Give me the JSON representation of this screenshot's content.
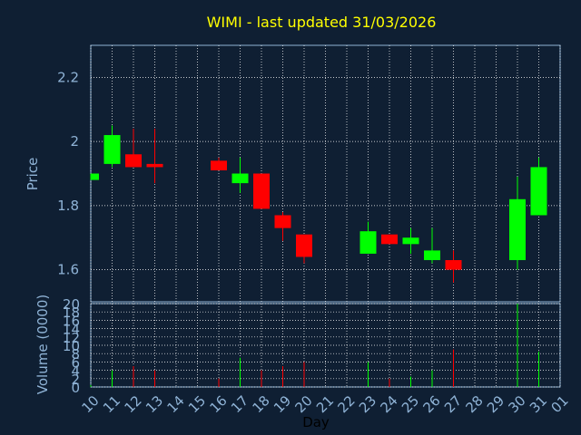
{
  "chart_data": [
    {
      "type": "candlestick",
      "title": "WIMI - last updated 31/03/2026",
      "ylabel": "Price",
      "ylim": [
        1.5,
        2.3
      ],
      "yticks": [
        "1.6",
        "1.8",
        "2",
        "2.2"
      ],
      "grid": true,
      "categories": [
        "10",
        "11",
        "12",
        "13",
        "14",
        "15",
        "16",
        "17",
        "18",
        "19",
        "20",
        "21",
        "22",
        "23",
        "24",
        "25",
        "26",
        "27",
        "28",
        "29",
        "30",
        "31",
        "01"
      ],
      "candles": [
        {
          "day": "10",
          "open": 1.88,
          "high": 1.9,
          "low": 1.88,
          "close": 1.9
        },
        {
          "day": "11",
          "open": 1.93,
          "high": 2.05,
          "low": 1.92,
          "close": 2.02
        },
        {
          "day": "12",
          "open": 1.96,
          "high": 2.04,
          "low": 1.92,
          "close": 1.92
        },
        {
          "day": "13",
          "open": 1.93,
          "high": 2.04,
          "low": 1.87,
          "close": 1.92
        },
        {
          "day": "16",
          "open": 1.94,
          "high": 1.95,
          "low": 1.91,
          "close": 1.91
        },
        {
          "day": "17",
          "open": 1.87,
          "high": 1.95,
          "low": 1.84,
          "close": 1.9
        },
        {
          "day": "18",
          "open": 1.9,
          "high": 1.9,
          "low": 1.79,
          "close": 1.79
        },
        {
          "day": "19",
          "open": 1.77,
          "high": 1.78,
          "low": 1.69,
          "close": 1.73
        },
        {
          "day": "20",
          "open": 1.71,
          "high": 1.71,
          "low": 1.62,
          "close": 1.64
        },
        {
          "day": "23",
          "open": 1.65,
          "high": 1.75,
          "low": 1.65,
          "close": 1.72
        },
        {
          "day": "24",
          "open": 1.71,
          "high": 1.71,
          "low": 1.68,
          "close": 1.68
        },
        {
          "day": "25",
          "open": 1.68,
          "high": 1.73,
          "low": 1.65,
          "close": 1.7
        },
        {
          "day": "26",
          "open": 1.63,
          "high": 1.73,
          "low": 1.62,
          "close": 1.66
        },
        {
          "day": "27",
          "open": 1.63,
          "high": 1.66,
          "low": 1.56,
          "close": 1.6
        },
        {
          "day": "30",
          "open": 1.63,
          "high": 1.89,
          "low": 1.6,
          "close": 1.82
        },
        {
          "day": "31",
          "open": 1.77,
          "high": 1.95,
          "low": 1.77,
          "close": 1.92
        }
      ]
    },
    {
      "type": "bar",
      "ylabel": "Volume (0000)",
      "xlabel": "Day",
      "ylim": [
        0,
        20
      ],
      "yticks": [
        "0",
        "2",
        "4",
        "6",
        "8",
        "10",
        "12",
        "14",
        "16",
        "18",
        "20"
      ],
      "grid": true,
      "categories": [
        "10",
        "11",
        "12",
        "13",
        "14",
        "15",
        "16",
        "17",
        "18",
        "19",
        "20",
        "21",
        "22",
        "23",
        "24",
        "25",
        "26",
        "27",
        "28",
        "29",
        "30",
        "31",
        "01"
      ],
      "values": [
        {
          "day": "10",
          "value": 0.5,
          "color": "#00ff00"
        },
        {
          "day": "11",
          "value": 4,
          "color": "#00ff00"
        },
        {
          "day": "12",
          "value": 5,
          "color": "#ff0000"
        },
        {
          "day": "13",
          "value": 4,
          "color": "#ff0000"
        },
        {
          "day": "16",
          "value": 2,
          "color": "#ff0000"
        },
        {
          "day": "17",
          "value": 7,
          "color": "#00ff00"
        },
        {
          "day": "18",
          "value": 4,
          "color": "#ff0000"
        },
        {
          "day": "19",
          "value": 5,
          "color": "#ff0000"
        },
        {
          "day": "20",
          "value": 6,
          "color": "#ff0000"
        },
        {
          "day": "23",
          "value": 6,
          "color": "#00ff00"
        },
        {
          "day": "24",
          "value": 2,
          "color": "#ff0000"
        },
        {
          "day": "25",
          "value": 2.5,
          "color": "#00ff00"
        },
        {
          "day": "26",
          "value": 4,
          "color": "#00ff00"
        },
        {
          "day": "27",
          "value": 9,
          "color": "#ff0000"
        },
        {
          "day": "30",
          "value": 20,
          "color": "#00ff00"
        },
        {
          "day": "31",
          "value": 8.5,
          "color": "#00ff00"
        }
      ]
    }
  ],
  "colors": {
    "background": "#0f1f33",
    "up": "#00ff00",
    "down": "#ff0000",
    "grid": "#ffffff",
    "title": "#ffff00",
    "text": "#8fb3d6"
  }
}
